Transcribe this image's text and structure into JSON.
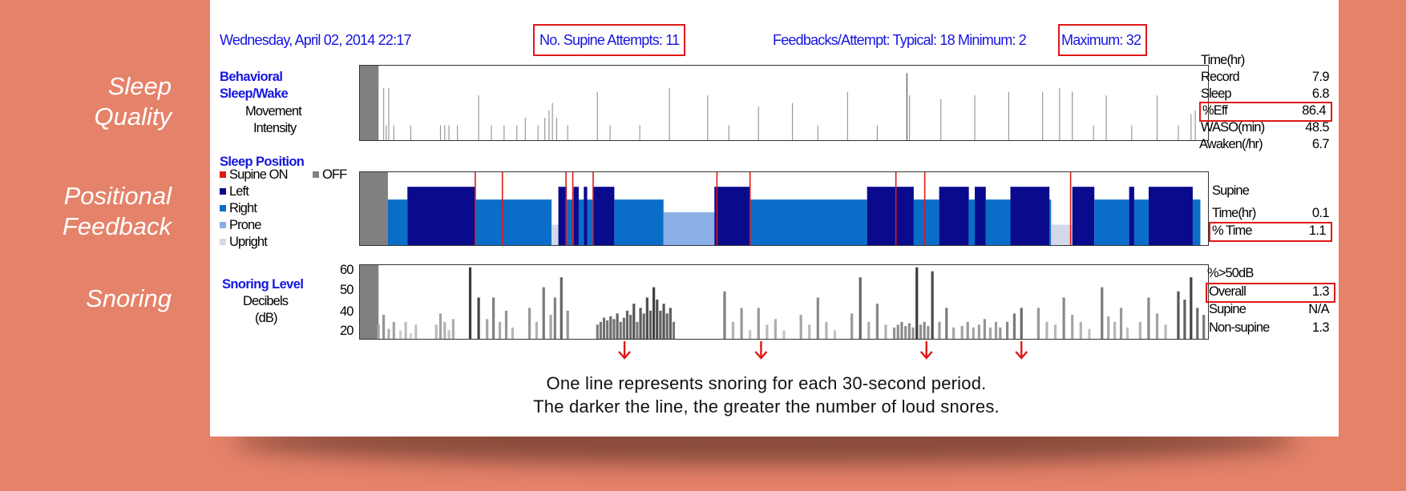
{
  "side_labels": {
    "quality_1": "Sleep",
    "quality_2": "Quality",
    "feedback_1": "Positional",
    "feedback_2": "Feedback",
    "snoring": "Snoring"
  },
  "header": {
    "date": "Wednesday, April 02, 2014 22:17",
    "supine_attempts": "No. Supine Attempts: 11",
    "feedbacks": "Feedbacks/Attempt: Typical: 18 Minimum: 2",
    "maximum": "Maximum: 32"
  },
  "behavioral": {
    "title_1": "Behavioral",
    "title_2": "Sleep/Wake",
    "sub_1": "Movement",
    "sub_2": "Intensity"
  },
  "position": {
    "title": "Sleep Position",
    "legend": {
      "supine_on": "Supine ON",
      "off": "OFF",
      "left": "Left",
      "right": "Right",
      "prone": "Prone",
      "upright": "Upright"
    }
  },
  "snoring": {
    "title": "Snoring Level",
    "sub_1": "Decibels",
    "sub_2": "(dB)",
    "yticks": [
      "60",
      "50",
      "40",
      "20"
    ]
  },
  "stats_sleep": {
    "header": "Time(hr)",
    "rows": [
      {
        "label": "Record",
        "value": "7.9"
      },
      {
        "label": "Sleep",
        "value": "6.8"
      },
      {
        "label": "%Eff",
        "value": "86.4"
      },
      {
        "label": "WASO(min)",
        "value": "48.5"
      },
      {
        "label": "Awaken(/hr)",
        "value": "6.7"
      }
    ]
  },
  "stats_position": {
    "header": "Supine",
    "rows": [
      {
        "label": "Time(hr)",
        "value": "0.1"
      },
      {
        "label": "% Time",
        "value": "1.1"
      }
    ]
  },
  "stats_snoring": {
    "header": "%>50dB",
    "rows": [
      {
        "label": "Overall",
        "value": "1.3"
      },
      {
        "label": "Supine",
        "value": "N/A"
      },
      {
        "label": "Non-supine",
        "value": "1.3"
      }
    ]
  },
  "note": {
    "line1": "One line represents snoring for each 30-second period.",
    "line2": "The darker the line, the greater the number of loud snores."
  },
  "colors": {
    "background": "#e5826a",
    "text_blue": "#1515e0",
    "highlight_red": "#e01818",
    "off_gray": "#808080",
    "left": "#0a0a8c",
    "right": "#0a6ec8",
    "prone": "#8aaee6",
    "upright": "#d4d8e8",
    "supine_marker": "#e01818"
  },
  "chart_data": [
    {
      "type": "bar",
      "name": "movement_intensity",
      "x_range": [
        0,
        100
      ],
      "off_span": [
        0,
        2.2
      ],
      "events": [
        {
          "x": 2.8,
          "v": 0.7
        },
        {
          "x": 3.1,
          "v": 0.2
        },
        {
          "x": 3.4,
          "v": 0.7
        },
        {
          "x": 4.0,
          "v": 0.2
        },
        {
          "x": 6.0,
          "v": 0.2
        },
        {
          "x": 9.5,
          "v": 0.2
        },
        {
          "x": 10.0,
          "v": 0.2
        },
        {
          "x": 10.5,
          "v": 0.2
        },
        {
          "x": 11.5,
          "v": 0.2
        },
        {
          "x": 14.0,
          "v": 0.6
        },
        {
          "x": 15.5,
          "v": 0.2
        },
        {
          "x": 17.0,
          "v": 0.2
        },
        {
          "x": 18.5,
          "v": 0.2
        },
        {
          "x": 19.5,
          "v": 0.3
        },
        {
          "x": 21.0,
          "v": 0.2
        },
        {
          "x": 21.8,
          "v": 0.3
        },
        {
          "x": 22.3,
          "v": 0.4
        },
        {
          "x": 22.7,
          "v": 0.5
        },
        {
          "x": 23.2,
          "v": 0.3
        },
        {
          "x": 24.5,
          "v": 0.2
        },
        {
          "x": 28.0,
          "v": 0.65
        },
        {
          "x": 29.5,
          "v": 0.2
        },
        {
          "x": 33.0,
          "v": 0.2
        },
        {
          "x": 36.5,
          "v": 0.7
        },
        {
          "x": 41.0,
          "v": 0.6
        },
        {
          "x": 43.5,
          "v": 0.2
        },
        {
          "x": 47.0,
          "v": 0.45
        },
        {
          "x": 51.0,
          "v": 0.5
        },
        {
          "x": 54.0,
          "v": 0.2
        },
        {
          "x": 57.5,
          "v": 0.65
        },
        {
          "x": 61.0,
          "v": 0.2
        },
        {
          "x": 64.5,
          "v": 0.9
        },
        {
          "x": 64.8,
          "v": 0.6
        },
        {
          "x": 68.5,
          "v": 0.55
        },
        {
          "x": 72.5,
          "v": 0.6
        },
        {
          "x": 76.5,
          "v": 0.65
        },
        {
          "x": 80.5,
          "v": 0.65
        },
        {
          "x": 82.5,
          "v": 0.7
        },
        {
          "x": 84.0,
          "v": 0.65
        },
        {
          "x": 86.5,
          "v": 0.2
        },
        {
          "x": 88.0,
          "v": 0.6
        },
        {
          "x": 91.0,
          "v": 0.2
        },
        {
          "x": 94.0,
          "v": 0.6
        },
        {
          "x": 96.5,
          "v": 0.2
        },
        {
          "x": 98.0,
          "v": 0.35
        },
        {
          "x": 98.5,
          "v": 0.4
        }
      ]
    },
    {
      "type": "bar",
      "name": "sleep_position",
      "x_range": [
        0,
        100
      ],
      "segments": [
        {
          "start": 0,
          "end": 3.3,
          "pos": "off"
        },
        {
          "start": 3.3,
          "end": 5.6,
          "pos": "right"
        },
        {
          "start": 5.6,
          "end": 13.6,
          "pos": "left"
        },
        {
          "start": 13.6,
          "end": 22.6,
          "pos": "right"
        },
        {
          "start": 22.6,
          "end": 23.4,
          "pos": "upright"
        },
        {
          "start": 23.4,
          "end": 24.4,
          "pos": "left"
        },
        {
          "start": 24.4,
          "end": 25.2,
          "pos": "right"
        },
        {
          "start": 25.2,
          "end": 25.8,
          "pos": "left"
        },
        {
          "start": 25.8,
          "end": 26.4,
          "pos": "right"
        },
        {
          "start": 26.4,
          "end": 26.8,
          "pos": "left"
        },
        {
          "start": 26.8,
          "end": 27.5,
          "pos": "right"
        },
        {
          "start": 27.5,
          "end": 30.0,
          "pos": "left"
        },
        {
          "start": 30.0,
          "end": 35.8,
          "pos": "right"
        },
        {
          "start": 35.8,
          "end": 41.8,
          "pos": "prone"
        },
        {
          "start": 41.8,
          "end": 46.0,
          "pos": "left"
        },
        {
          "start": 46.0,
          "end": 59.8,
          "pos": "right"
        },
        {
          "start": 59.8,
          "end": 65.3,
          "pos": "left"
        },
        {
          "start": 65.3,
          "end": 68.3,
          "pos": "right"
        },
        {
          "start": 68.3,
          "end": 71.8,
          "pos": "left"
        },
        {
          "start": 71.8,
          "end": 72.5,
          "pos": "right"
        },
        {
          "start": 72.5,
          "end": 73.8,
          "pos": "left"
        },
        {
          "start": 73.8,
          "end": 76.7,
          "pos": "right"
        },
        {
          "start": 76.7,
          "end": 81.3,
          "pos": "left"
        },
        {
          "start": 81.3,
          "end": 81.5,
          "pos": "right"
        },
        {
          "start": 81.5,
          "end": 84.0,
          "pos": "upright"
        },
        {
          "start": 84.0,
          "end": 86.6,
          "pos": "left"
        },
        {
          "start": 86.6,
          "end": 90.7,
          "pos": "right"
        },
        {
          "start": 90.7,
          "end": 91.3,
          "pos": "left"
        },
        {
          "start": 91.3,
          "end": 93.0,
          "pos": "right"
        },
        {
          "start": 93.0,
          "end": 98.2,
          "pos": "left"
        },
        {
          "start": 98.2,
          "end": 99.1,
          "pos": "right"
        }
      ],
      "supine_on": [
        13.6,
        16.8,
        24.3,
        25.1,
        27.5,
        42.1,
        46.0,
        63.2,
        66.6,
        83.8
      ]
    },
    {
      "type": "bar",
      "name": "snoring_level",
      "ylabel": "Decibels (dB)",
      "y_ticks": [
        20,
        40,
        50,
        60
      ],
      "x_range": [
        0,
        100
      ],
      "off_span": [
        0,
        2.2
      ],
      "clusters": [
        {
          "start": 2.2,
          "end": 4.0,
          "db": [
            28,
            35,
            25,
            30
          ],
          "tone": 0.4
        },
        {
          "start": 4.8,
          "end": 6.6,
          "db": [
            24,
            30,
            22,
            28
          ],
          "tone": 0.25
        },
        {
          "start": 9.0,
          "end": 11.0,
          "db": [
            28,
            36,
            30,
            24,
            32
          ],
          "tone": 0.3
        },
        {
          "start": 13.0,
          "end": 14.0,
          "db": [
            60,
            45
          ],
          "tone": 0.7
        },
        {
          "start": 15.0,
          "end": 18.0,
          "db": [
            32,
            45,
            30,
            38,
            26
          ],
          "tone": 0.35
        },
        {
          "start": 20.0,
          "end": 22.5,
          "db": [
            40,
            30,
            50,
            35
          ],
          "tone": 0.3
        },
        {
          "start": 23.0,
          "end": 24.5,
          "db": [
            45,
            55,
            38
          ],
          "tone": 0.35
        },
        {
          "start": 28.0,
          "end": 37.0,
          "db": [
            28,
            30,
            33,
            31,
            34,
            32,
            36,
            30,
            33,
            38,
            35,
            42,
            30,
            40,
            36,
            45,
            38,
            50,
            44,
            38,
            42,
            36,
            40,
            30
          ],
          "tone": 0.65
        },
        {
          "start": 43.0,
          "end": 46.0,
          "db": [
            48,
            30,
            40,
            24
          ],
          "tone": 0.3
        },
        {
          "start": 47.0,
          "end": 50.0,
          "db": [
            40,
            28,
            32,
            24
          ],
          "tone": 0.3
        },
        {
          "start": 52.0,
          "end": 56.0,
          "db": [
            35,
            28,
            45,
            30,
            24
          ],
          "tone": 0.3
        },
        {
          "start": 58.0,
          "end": 62.0,
          "db": [
            36,
            55,
            30,
            42,
            28
          ],
          "tone": 0.35
        },
        {
          "start": 63.0,
          "end": 67.0,
          "db": [
            26,
            28,
            30,
            27,
            29,
            26,
            60,
            28,
            30,
            27
          ],
          "tone": 0.55
        },
        {
          "start": 67.5,
          "end": 70.0,
          "db": [
            58,
            30,
            40,
            26
          ],
          "tone": 0.45
        },
        {
          "start": 71.0,
          "end": 75.0,
          "db": [
            27,
            30,
            26,
            28,
            32,
            26,
            30
          ],
          "tone": 0.45
        },
        {
          "start": 75.5,
          "end": 78.0,
          "db": [
            26,
            30,
            36,
            40
          ],
          "tone": 0.55
        },
        {
          "start": 80.0,
          "end": 82.0,
          "db": [
            40,
            30,
            28
          ],
          "tone": 0.3
        },
        {
          "start": 83.0,
          "end": 86.0,
          "db": [
            45,
            35,
            30,
            25
          ],
          "tone": 0.3
        },
        {
          "start": 87.5,
          "end": 90.5,
          "db": [
            50,
            34,
            30,
            40,
            26
          ],
          "tone": 0.3
        },
        {
          "start": 92.0,
          "end": 95.0,
          "db": [
            30,
            45,
            36,
            28
          ],
          "tone": 0.3
        },
        {
          "start": 96.5,
          "end": 99.5,
          "db": [
            48,
            44,
            55,
            40,
            35
          ],
          "tone": 0.55
        }
      ],
      "snore_markers": [
        31.2,
        47.3,
        66.8,
        78.0
      ]
    }
  ]
}
